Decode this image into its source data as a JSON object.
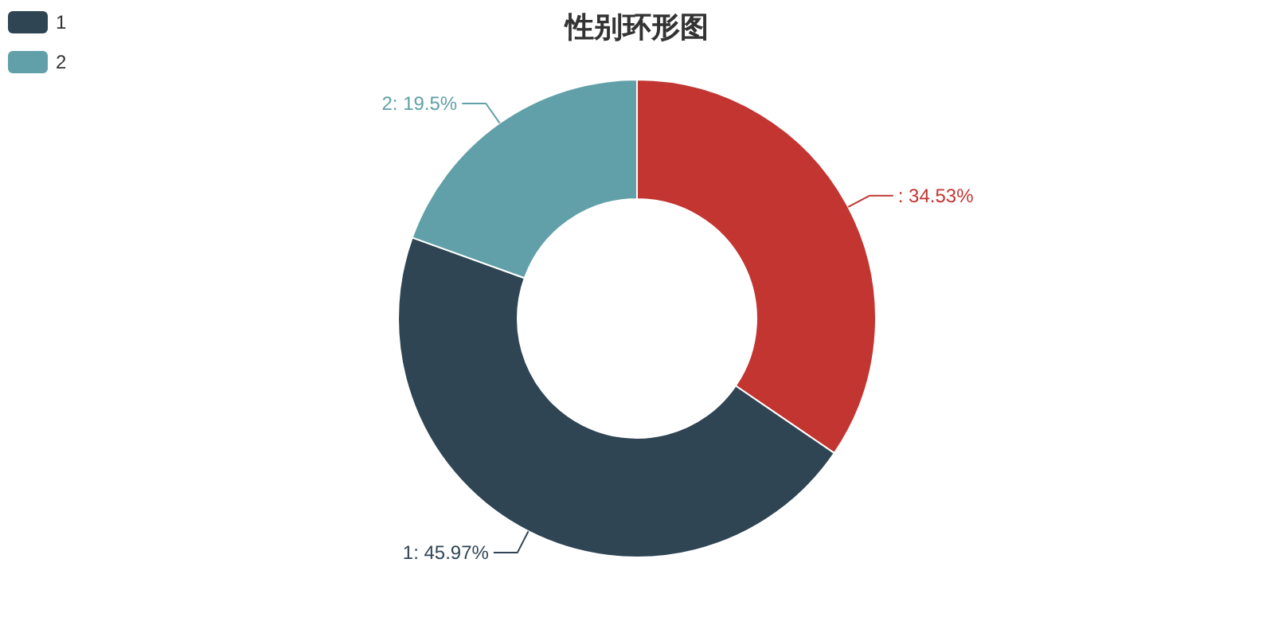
{
  "chart_data": {
    "type": "donut",
    "title": "性别环形图",
    "categories": [
      null,
      "1",
      "2"
    ],
    "values": [
      34.53,
      45.97,
      19.5
    ],
    "colors": [
      "#c23531",
      "#2f4554",
      "#61a0a8"
    ],
    "value_labels": [
      ": 34.53%",
      "1: 45.97%",
      "2: 19.5%"
    ],
    "legend": "top left"
  }
}
